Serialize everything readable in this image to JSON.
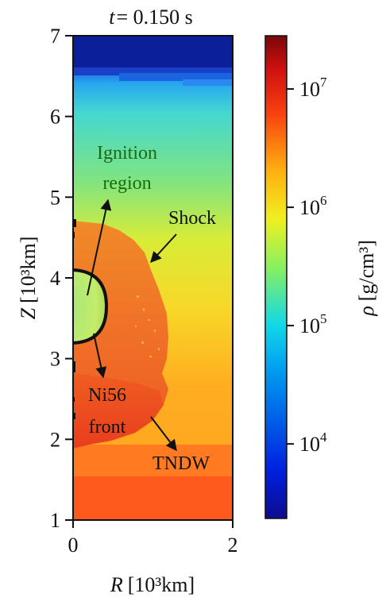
{
  "chart_data": {
    "type": "heatmap",
    "title": {
      "t": "t",
      "eq": "= 0.150 s"
    },
    "x_axis": {
      "label_var": "R",
      "label_unit": "[10³km]",
      "ticks": [
        "0",
        "2"
      ],
      "range": [
        0,
        2
      ]
    },
    "y_axis": {
      "label_var": "Z",
      "label_unit": "[10³km]",
      "ticks": [
        "1",
        "2",
        "3",
        "4",
        "5",
        "6",
        "7"
      ],
      "range": [
        1,
        7
      ]
    },
    "colorbar": {
      "label_var": "ρ",
      "label_unit": "[g/cm³]",
      "scale": "log",
      "ticks": [
        {
          "base": "10",
          "exp": "4",
          "value": 10000
        },
        {
          "base": "10",
          "exp": "5",
          "value": 100000
        },
        {
          "base": "10",
          "exp": "6",
          "value": 1000000
        },
        {
          "base": "10",
          "exp": "7",
          "value": 10000000
        }
      ],
      "range_log10": [
        3.37,
        7.45
      ],
      "colormap": "jet"
    },
    "annotations": [
      {
        "lines": [
          "Ignition",
          "region"
        ],
        "color": "#1a6a10"
      },
      {
        "lines": [
          "Shock"
        ],
        "color": "#111111"
      },
      {
        "lines": [
          "Ni56",
          "front"
        ],
        "color": "#111111"
      },
      {
        "lines": [
          "TNDW"
        ],
        "color": "#111111"
      }
    ]
  },
  "colors": {
    "high_density": "#e8391c",
    "low_density": "#0c1f9a",
    "text": "#111111"
  }
}
